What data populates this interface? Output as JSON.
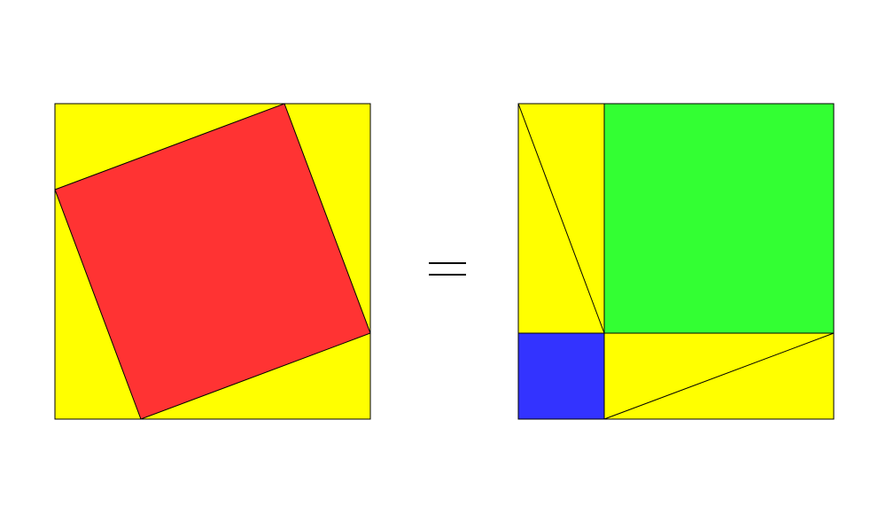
{
  "colors": {
    "background": "#ffffff",
    "triangle_fill": "#ffff00",
    "hypotenuse_square_fill": "#ff3333",
    "long_leg_square_fill": "#33ff33",
    "short_leg_square_fill": "#3333ff",
    "outline": "#000000"
  },
  "equals_sign": {
    "icon": "equals-icon"
  }
}
